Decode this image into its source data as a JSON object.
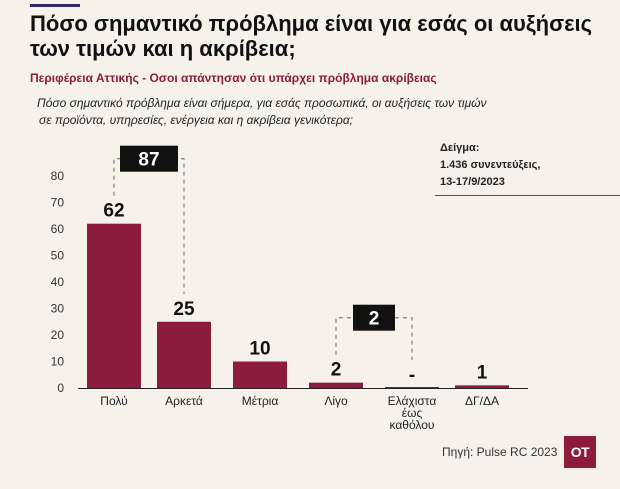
{
  "header": {
    "title": "Πόσο σημαντικό πρόβλημα είναι για εσάς οι αυξήσεις των τιμών και η ακρίβεια;",
    "subtitle": "Περιφέρεια Αττικής - Οσοι απάντησαν ότι υπάρχει πρόβλημα ακρίβειας",
    "question_line1": "Πόσο σημαντικό πρόβλημα είναι σήμερα, για εσάς προσωπικά, οι αυξήσεις των τιμών",
    "question_line2": "σε προϊόντα, υπηρεσίες, ενέργεια και η ακρίβεια γενικότερα;"
  },
  "sample": {
    "line1": "Δείγμα:",
    "line2": "1.436 συνεντεύξεις,",
    "line3": "13-17/9/2023"
  },
  "footer": {
    "source": "Πηγή: Pulse RC 2023",
    "logo": "OT"
  },
  "colors": {
    "bar": "#8c1b3c",
    "background": "#f7f2e9",
    "callout": "#111111",
    "accent": "#2f2a6b"
  },
  "chart_data": {
    "type": "bar",
    "categories": [
      [
        "Πολύ"
      ],
      [
        "Αρκετά"
      ],
      [
        "Μέτρια"
      ],
      [
        "Λίγο"
      ],
      [
        "Ελάχιστα",
        "έως",
        "καθόλου"
      ],
      [
        "ΔΓ/ΔΑ"
      ]
    ],
    "values": [
      62,
      25,
      10,
      2,
      0,
      1
    ],
    "value_labels": [
      "62",
      "25",
      "10",
      "2",
      "-",
      "1"
    ],
    "yticks": [
      0,
      10,
      20,
      30,
      40,
      50,
      60,
      70,
      80
    ],
    "ylim": [
      0,
      80
    ],
    "grid": false,
    "groups": [
      {
        "label": "87",
        "from": 0,
        "to": 1
      },
      {
        "label": "2",
        "from": 3,
        "to": 4
      }
    ]
  }
}
